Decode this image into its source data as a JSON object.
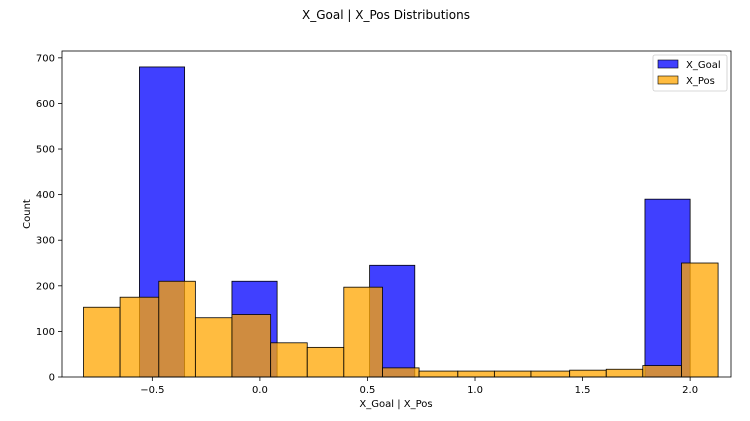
{
  "chart_data": {
    "type": "histogram",
    "title": "X_Goal | X_Pos Distributions",
    "xlabel": "X_Goal | X_Pos",
    "ylabel": "Count",
    "xlim": [
      -0.92,
      2.19
    ],
    "ylim": [
      0,
      715
    ],
    "xticks": [
      -0.5,
      0.0,
      0.5,
      1.0,
      1.5,
      2.0
    ],
    "xtick_labels": [
      "−0.5",
      "0.0",
      "0.5",
      "1.0",
      "1.5",
      "2.0"
    ],
    "yticks": [
      0,
      100,
      200,
      300,
      400,
      500,
      600,
      700
    ],
    "ytick_labels": [
      "0",
      "100",
      "200",
      "300",
      "400",
      "500",
      "600",
      "700"
    ],
    "legend_position": "top-right",
    "series": [
      {
        "name": "X_Goal",
        "color": "#0000ff",
        "opacity": 0.75,
        "bins": [
          {
            "x0": -0.56,
            "x1": -0.35,
            "count": 680
          },
          {
            "x0": -0.13,
            "x1": 0.08,
            "count": 210
          },
          {
            "x0": 0.51,
            "x1": 0.72,
            "count": 245
          },
          {
            "x0": 1.79,
            "x1": 2.0,
            "count": 390
          }
        ]
      },
      {
        "name": "X_Pos",
        "color": "#ffa500",
        "opacity": 0.75,
        "bins": [
          {
            "x0": -0.82,
            "x1": -0.65,
            "count": 153
          },
          {
            "x0": -0.65,
            "x1": -0.47,
            "count": 175
          },
          {
            "x0": -0.47,
            "x1": -0.3,
            "count": 210
          },
          {
            "x0": -0.3,
            "x1": -0.13,
            "count": 130
          },
          {
            "x0": -0.13,
            "x1": 0.05,
            "count": 137
          },
          {
            "x0": 0.05,
            "x1": 0.22,
            "count": 75
          },
          {
            "x0": 0.22,
            "x1": 0.39,
            "count": 65
          },
          {
            "x0": 0.39,
            "x1": 0.57,
            "count": 197
          },
          {
            "x0": 0.57,
            "x1": 0.74,
            "count": 20
          },
          {
            "x0": 0.74,
            "x1": 0.92,
            "count": 13
          },
          {
            "x0": 0.92,
            "x1": 1.09,
            "count": 13
          },
          {
            "x0": 1.09,
            "x1": 1.26,
            "count": 13
          },
          {
            "x0": 1.26,
            "x1": 1.44,
            "count": 13
          },
          {
            "x0": 1.44,
            "x1": 1.61,
            "count": 15
          },
          {
            "x0": 1.61,
            "x1": 1.78,
            "count": 17
          },
          {
            "x0": 1.78,
            "x1": 1.96,
            "count": 25
          },
          {
            "x0": 1.96,
            "x1": 2.13,
            "count": 250
          }
        ]
      }
    ]
  }
}
